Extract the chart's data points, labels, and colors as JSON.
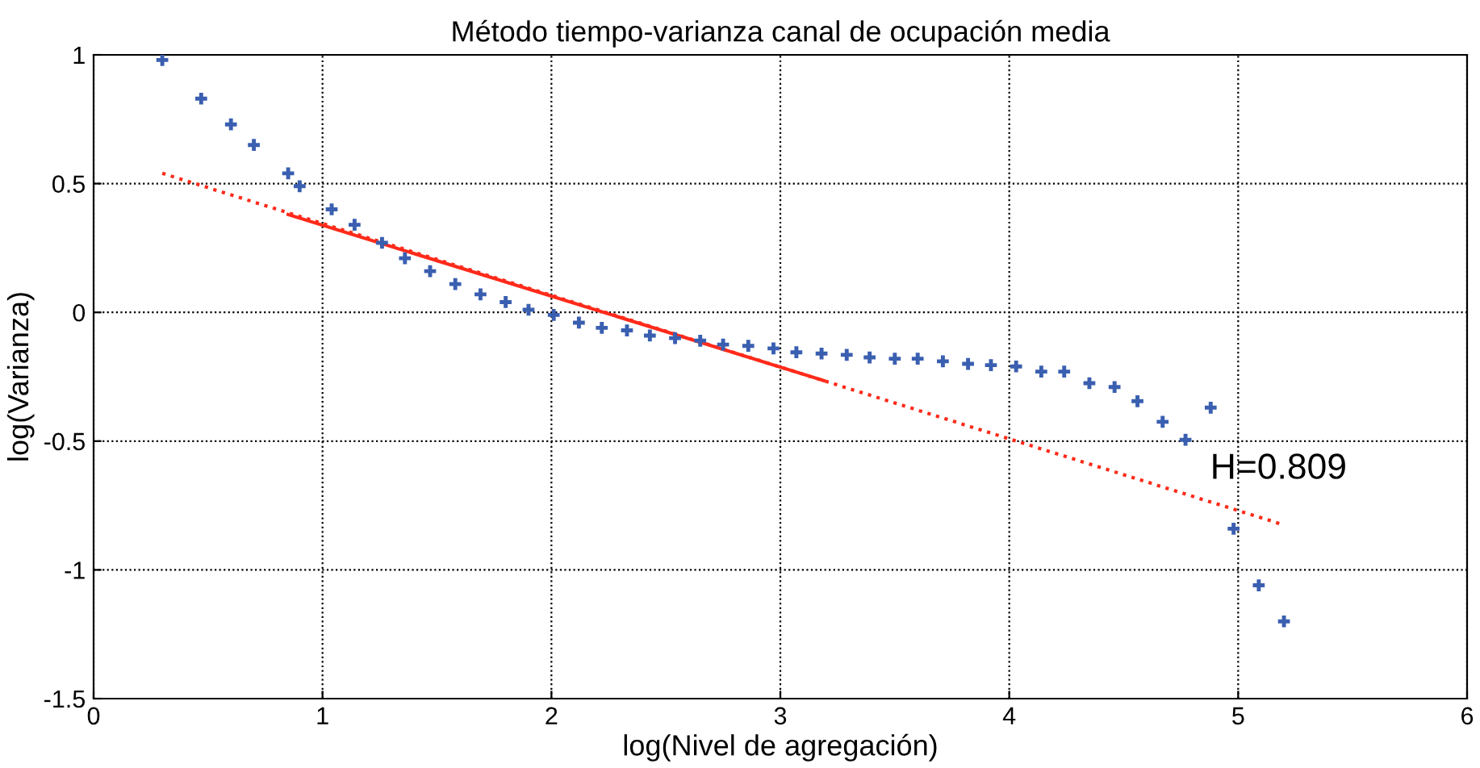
{
  "chart_data": {
    "type": "scatter",
    "title": "Método tiempo-varianza canal de ocupación media",
    "xlabel": "log(Nivel de agregación)",
    "ylabel": "log(Varianza)",
    "xlim": [
      0,
      6
    ],
    "ylim": [
      -1.5,
      1
    ],
    "xticks": [
      0,
      1,
      2,
      3,
      4,
      5,
      6
    ],
    "yticks": [
      -1.5,
      -1,
      -0.5,
      0,
      0.5,
      1
    ],
    "grid": true,
    "series": [
      {
        "color": "#3a5fb0",
        "marker": "cross",
        "x": [
          0.3,
          0.47,
          0.6,
          0.7,
          0.85,
          0.9,
          1.04,
          1.14,
          1.26,
          1.36,
          1.47,
          1.58,
          1.69,
          1.8,
          1.9,
          2.01,
          2.12,
          2.22,
          2.33,
          2.43,
          2.54,
          2.65,
          2.75,
          2.86,
          2.97,
          3.07,
          3.18,
          3.29,
          3.39,
          3.5,
          3.6,
          3.71,
          3.82,
          3.92,
          4.03,
          4.14,
          4.24,
          4.35,
          4.46,
          4.56,
          4.67,
          4.77,
          4.88,
          4.98,
          5.09,
          5.2
        ],
        "values": [
          0.98,
          0.83,
          0.73,
          0.65,
          0.54,
          0.49,
          0.4,
          0.34,
          0.27,
          0.21,
          0.16,
          0.11,
          0.07,
          0.04,
          0.01,
          -0.01,
          -0.04,
          -0.06,
          -0.07,
          -0.09,
          -0.1,
          -0.11,
          -0.125,
          -0.13,
          -0.14,
          -0.155,
          -0.16,
          -0.165,
          -0.175,
          -0.18,
          -0.18,
          -0.19,
          -0.2,
          -0.205,
          -0.21,
          -0.23,
          -0.23,
          -0.275,
          -0.29,
          -0.345,
          -0.425,
          -0.495,
          -0.37,
          -0.84,
          -1.06,
          -1.2
        ]
      },
      {
        "type": "line",
        "color": "#ff2a1a",
        "line_style": "dotted",
        "x": [
          0.3,
          5.18
        ],
        "values": [
          0.54,
          -0.82
        ]
      },
      {
        "type": "line",
        "color": "#ff2a1a",
        "line_style": "solid",
        "x": [
          0.85,
          3.19
        ],
        "values": [
          0.38,
          -0.265
        ]
      }
    ],
    "annotations": [
      "H=0.809"
    ]
  }
}
